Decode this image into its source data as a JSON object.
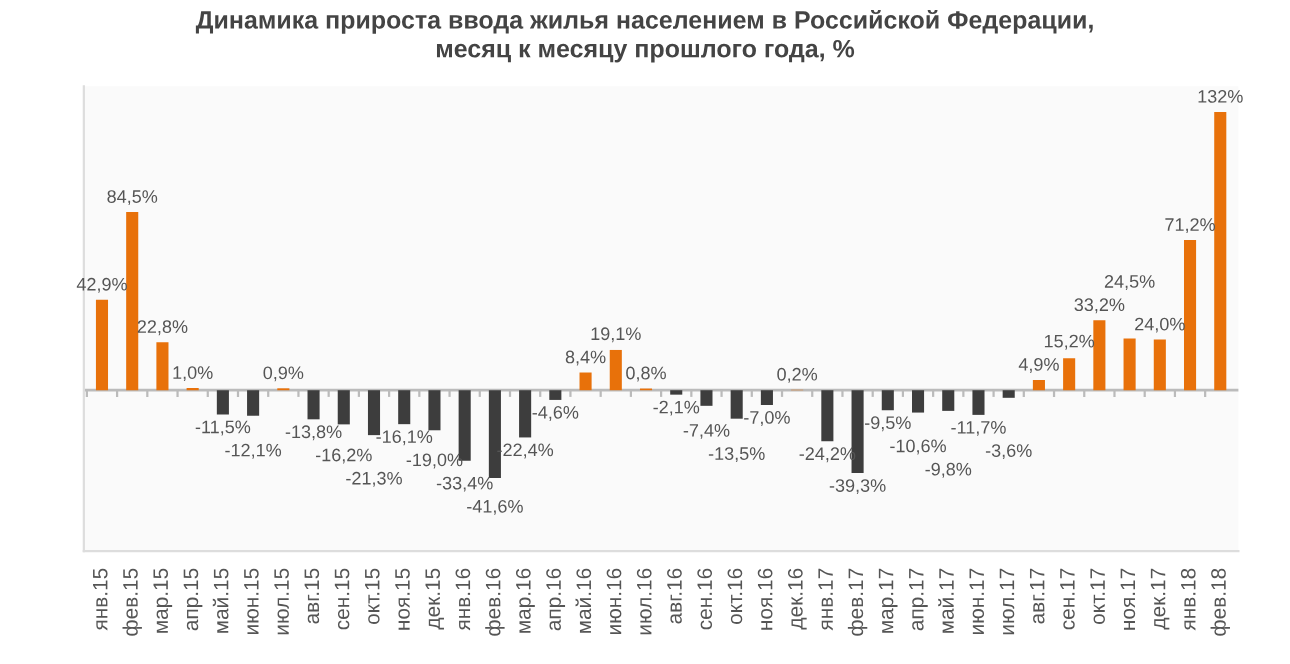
{
  "chart_data": {
    "type": "bar",
    "title": "Динамика прироста ввода жилья населением в Российской Федерации,\nмесяц к месяцу прошлого года, %",
    "categories": [
      "янв.15",
      "фев.15",
      "мар.15",
      "апр.15",
      "май.15",
      "июн.15",
      "июл.15",
      "авг.15",
      "сен.15",
      "окт.15",
      "ноя.15",
      "дек.15",
      "янв.16",
      "фев.16",
      "мар.16",
      "апр.16",
      "май.16",
      "июн.16",
      "июл.16",
      "авг.16",
      "сен.16",
      "окт.16",
      "ноя.16",
      "дек.16",
      "янв.17",
      "фев.17",
      "мар.17",
      "апр.17",
      "май.17",
      "июн.17",
      "июл.17",
      "авг.17",
      "сен.17",
      "окт.17",
      "ноя.17",
      "дек.17",
      "янв.18",
      "фев.18"
    ],
    "values": [
      42.9,
      84.5,
      22.8,
      1.0,
      -11.5,
      -12.1,
      0.9,
      -13.8,
      -16.2,
      -21.3,
      -16.1,
      -19.0,
      -33.4,
      -41.6,
      -22.4,
      -4.6,
      8.4,
      19.1,
      0.8,
      -2.1,
      -7.4,
      -13.5,
      -7.0,
      0.2,
      -24.2,
      -39.3,
      -9.5,
      -10.6,
      -9.8,
      -11.7,
      -3.6,
      4.9,
      15.2,
      33.2,
      24.5,
      24.0,
      71.2,
      132
    ],
    "value_labels": [
      "42,9%",
      "84,5%",
      "22,8%",
      "1,0%",
      "-11,5%",
      "-12,1%",
      "0,9%",
      "-13,8%",
      "-16,2%",
      "-21,3%",
      "-16,1%",
      "-19,0%",
      "-33,4%",
      "-41,6%",
      "-22,4%",
      "-4,6%",
      "8,4%",
      "19,1%",
      "0,8%",
      "-2,1%",
      "-7,4%",
      "-13,5%",
      "-7,0%",
      "0,2%",
      "-24,2%",
      "-39,3%",
      "-9,5%",
      "-10,6%",
      "-9,8%",
      "-11,7%",
      "-3,6%",
      "4,9%",
      "15,2%",
      "33,2%",
      "24,5%",
      "24,0%",
      "71,2%",
      "132%"
    ],
    "colors": [
      "#e8710a",
      "#e8710a",
      "#e8710a",
      "#e8710a",
      "#3d3d3d",
      "#3d3d3d",
      "#e8710a",
      "#3d3d3d",
      "#3d3d3d",
      "#3d3d3d",
      "#3d3d3d",
      "#3d3d3d",
      "#3d3d3d",
      "#3d3d3d",
      "#3d3d3d",
      "#3d3d3d",
      "#e8710a",
      "#e8710a",
      "#e8710a",
      "#3d3d3d",
      "#3d3d3d",
      "#3d3d3d",
      "#3d3d3d",
      "#e8710a",
      "#3d3d3d",
      "#3d3d3d",
      "#3d3d3d",
      "#3d3d3d",
      "#3d3d3d",
      "#3d3d3d",
      "#3d3d3d",
      "#e8710a",
      "#e8710a",
      "#e8710a",
      "#e8710a",
      "#e8710a",
      "#e8710a",
      "#e8710a"
    ],
    "tick_labels": "x",
    "grid": false,
    "legend": false
  }
}
